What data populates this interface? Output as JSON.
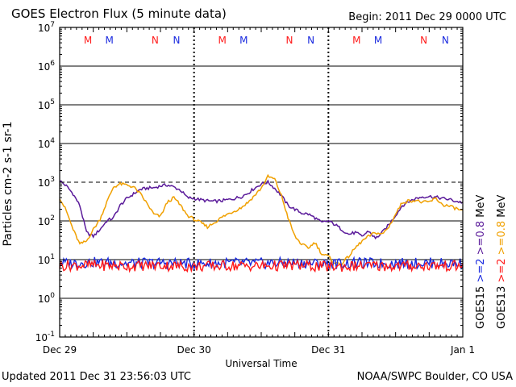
{
  "header": {
    "title": "GOES Electron Flux (5 minute data)",
    "begin": "Begin: 2011 Dec 29 0000 UTC"
  },
  "footer": {
    "updated": "Updated 2011 Dec 31 23:56:03 UTC",
    "credit": "NOAA/SWPC Boulder, CO USA"
  },
  "colors": {
    "goes15_2mev": "#1a2adf",
    "goes15_08mev": "#5a1a9a",
    "goes13_2mev": "#ff1a1a",
    "goes13_08mev": "#f0a000",
    "marker_m_red": "#ff1a1a",
    "marker_m_blue": "#1a2adf"
  },
  "chart_data": {
    "type": "line",
    "title": "GOES Electron Flux (5 minute data)",
    "xlabel": "Universal Time",
    "ylabel": "Particles cm-2 s-1 sr-1",
    "y_scale": "log",
    "ylim": [
      0.1,
      10000000
    ],
    "xlim": [
      0,
      3
    ],
    "x_ticks": [
      {
        "value": 0,
        "label": "Dec 29"
      },
      {
        "value": 1,
        "label": "Dec 30"
      },
      {
        "value": 2,
        "label": "Dec 31"
      },
      {
        "value": 3,
        "label": "Jan 1"
      }
    ],
    "y_ticks": [
      {
        "value": 10000000,
        "base": "10",
        "exp": "7"
      },
      {
        "value": 1000000,
        "base": "10",
        "exp": "6"
      },
      {
        "value": 100000,
        "base": "10",
        "exp": "5"
      },
      {
        "value": 10000,
        "base": "10",
        "exp": "4"
      },
      {
        "value": 1000,
        "base": "10",
        "exp": "3"
      },
      {
        "value": 100,
        "base": "10",
        "exp": "2"
      },
      {
        "value": 10,
        "base": "10",
        "exp": "1"
      },
      {
        "value": 1,
        "base": "10",
        "exp": "0"
      },
      {
        "value": 0.1,
        "base": "10",
        "exp": "-1"
      }
    ],
    "threshold": 1000,
    "markers": [
      {
        "label": "M",
        "x": 0.21,
        "color": "#ff1a1a"
      },
      {
        "label": "M",
        "x": 0.37,
        "color": "#1a2adf"
      },
      {
        "label": "N",
        "x": 0.71,
        "color": "#ff1a1a"
      },
      {
        "label": "N",
        "x": 0.87,
        "color": "#1a2adf"
      },
      {
        "label": "M",
        "x": 1.21,
        "color": "#ff1a1a"
      },
      {
        "label": "M",
        "x": 1.37,
        "color": "#1a2adf"
      },
      {
        "label": "N",
        "x": 1.71,
        "color": "#ff1a1a"
      },
      {
        "label": "N",
        "x": 1.87,
        "color": "#1a2adf"
      },
      {
        "label": "M",
        "x": 2.21,
        "color": "#ff1a1a"
      },
      {
        "label": "M",
        "x": 2.37,
        "color": "#1a2adf"
      },
      {
        "label": "N",
        "x": 2.71,
        "color": "#ff1a1a"
      },
      {
        "label": "N",
        "x": 2.87,
        "color": "#1a2adf"
      }
    ],
    "legend": {
      "right_col_prefix": "GOES13",
      "right_col_a": ">=2",
      "right_col_b": ">=0.8",
      "right_col_unit": "MeV",
      "left_col_prefix": "GOES15",
      "left_col_a": ">=2",
      "left_col_b": ">=0.8",
      "left_col_unit": "MeV"
    },
    "series": [
      {
        "name": "GOES15 >=0.8 MeV",
        "color": "#5a1a9a",
        "x": [
          0,
          0.05,
          0.1,
          0.15,
          0.2,
          0.25,
          0.3,
          0.35,
          0.4,
          0.45,
          0.5,
          0.55,
          0.6,
          0.65,
          0.7,
          0.75,
          0.8,
          0.85,
          0.9,
          0.95,
          1.0,
          1.05,
          1.1,
          1.15,
          1.2,
          1.25,
          1.3,
          1.35,
          1.4,
          1.45,
          1.5,
          1.55,
          1.6,
          1.65,
          1.7,
          1.75,
          1.8,
          1.85,
          1.9,
          1.95,
          2.0,
          2.05,
          2.1,
          2.15,
          2.2,
          2.25,
          2.3,
          2.35,
          2.4,
          2.45,
          2.5,
          2.55,
          2.6,
          2.65,
          2.7,
          2.75,
          2.8,
          2.85,
          2.9,
          2.95,
          3.0
        ],
        "values": [
          1100,
          800,
          500,
          250,
          50,
          40,
          60,
          100,
          120,
          250,
          380,
          500,
          650,
          700,
          720,
          800,
          850,
          750,
          620,
          400,
          380,
          350,
          330,
          320,
          330,
          350,
          380,
          420,
          520,
          700,
          900,
          1000,
          700,
          450,
          250,
          200,
          160,
          150,
          120,
          90,
          100,
          80,
          60,
          45,
          50,
          40,
          55,
          35,
          50,
          80,
          140,
          250,
          320,
          380,
          420,
          430,
          410,
          380,
          360,
          320,
          300
        ]
      },
      {
        "name": "GOES13 >=0.8 MeV",
        "color": "#f0a000",
        "x": [
          0,
          0.05,
          0.1,
          0.15,
          0.2,
          0.25,
          0.3,
          0.35,
          0.4,
          0.45,
          0.5,
          0.55,
          0.6,
          0.65,
          0.7,
          0.75,
          0.8,
          0.85,
          0.9,
          0.95,
          1.0,
          1.05,
          1.1,
          1.15,
          1.2,
          1.25,
          1.3,
          1.35,
          1.4,
          1.45,
          1.5,
          1.55,
          1.6,
          1.65,
          1.7,
          1.75,
          1.8,
          1.85,
          1.9,
          1.95,
          2.0,
          2.05,
          2.1,
          2.15,
          2.2,
          2.25,
          2.3,
          2.35,
          2.4,
          2.45,
          2.5,
          2.55,
          2.6,
          2.65,
          2.7,
          2.75,
          2.8,
          2.85,
          2.9,
          2.95,
          3.0
        ],
        "values": [
          400,
          180,
          60,
          25,
          30,
          60,
          110,
          300,
          750,
          900,
          850,
          750,
          500,
          280,
          150,
          130,
          300,
          400,
          250,
          140,
          110,
          90,
          70,
          90,
          120,
          150,
          180,
          220,
          300,
          450,
          700,
          1400,
          1200,
          450,
          120,
          40,
          25,
          20,
          28,
          14,
          12,
          8,
          8,
          12,
          20,
          30,
          40,
          50,
          45,
          70,
          150,
          300,
          330,
          340,
          300,
          310,
          380,
          260,
          240,
          210,
          180
        ]
      },
      {
        "name": "GOES15 >=2 MeV",
        "color": "#1a2adf",
        "x": [
          0,
          0.25,
          0.5,
          0.75,
          1.0,
          1.25,
          1.5,
          1.75,
          2.0,
          2.25,
          2.5,
          2.75,
          3.0
        ],
        "values": [
          8,
          8.5,
          8,
          8.3,
          7.8,
          8.2,
          8,
          8.3,
          7.8,
          8.1,
          8,
          8.2,
          8
        ]
      },
      {
        "name": "GOES13 >=2 MeV",
        "color": "#ff1a1a",
        "x": [
          0,
          0.25,
          0.5,
          0.75,
          1.0,
          1.25,
          1.5,
          1.75,
          2.0,
          2.25,
          2.5,
          2.75,
          3.0
        ],
        "values": [
          7,
          7.2,
          6.8,
          7.1,
          6.6,
          7,
          6.8,
          7.1,
          6.5,
          6.9,
          6.8,
          7,
          6.8
        ]
      }
    ]
  }
}
